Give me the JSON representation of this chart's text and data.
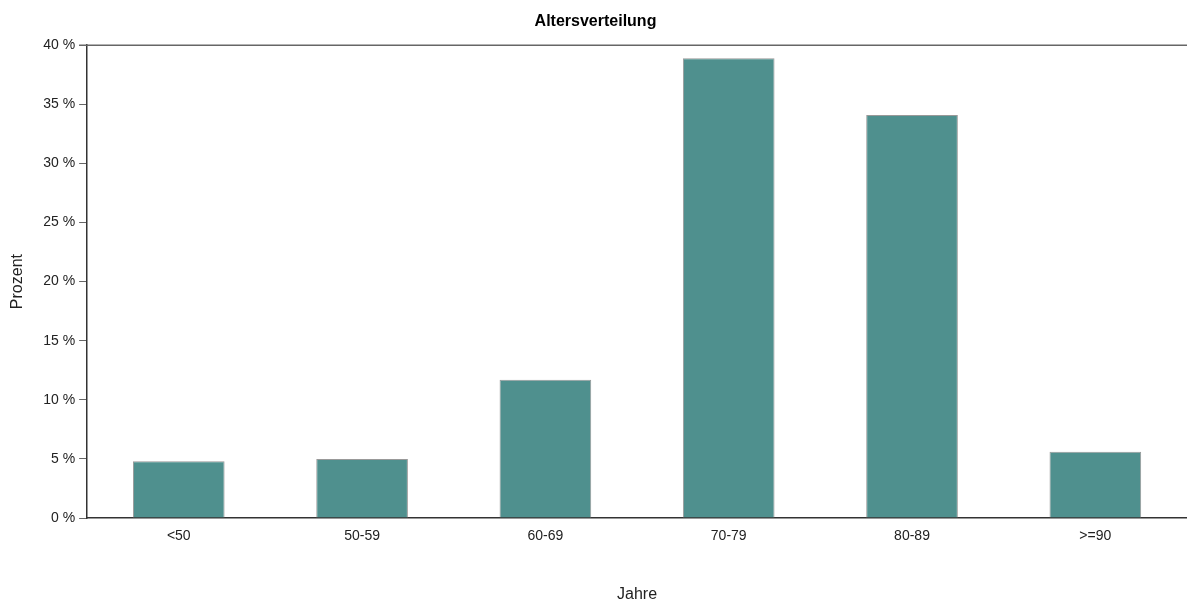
{
  "chart_data": {
    "type": "bar",
    "title": "Altersverteilung",
    "xlabel": "Jahre",
    "ylabel": "Prozent",
    "categories": [
      "<50",
      "50-59",
      "60-69",
      "70-79",
      "80-89",
      ">=90"
    ],
    "values": [
      4.8,
      5.0,
      11.7,
      38.9,
      34.1,
      5.6
    ],
    "color": "#4f908e",
    "ylim": [
      0,
      40
    ],
    "yticks": [
      {
        "value": 0,
        "label": "0 %"
      },
      {
        "value": 5,
        "label": "5 %"
      },
      {
        "value": 10,
        "label": "10 %"
      },
      {
        "value": 15,
        "label": "15 %"
      },
      {
        "value": 20,
        "label": "20 %"
      },
      {
        "value": 25,
        "label": "25 %"
      },
      {
        "value": 30,
        "label": "30 %"
      },
      {
        "value": 35,
        "label": "35 %"
      },
      {
        "value": 40,
        "label": "40 %"
      }
    ],
    "grid": false,
    "legend": false
  }
}
